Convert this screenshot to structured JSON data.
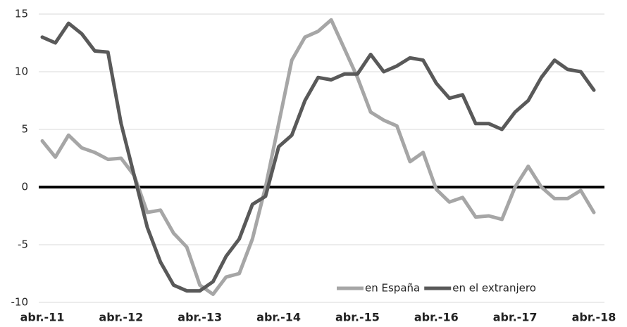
{
  "chart_data": {
    "type": "line",
    "categories": [
      "abr.-11",
      null,
      null,
      null,
      null,
      null,
      "abr.-12",
      null,
      null,
      null,
      null,
      null,
      "abr.-13",
      null,
      null,
      null,
      null,
      null,
      "abr.-14",
      null,
      null,
      null,
      null,
      null,
      "abr.-15",
      null,
      null,
      null,
      null,
      null,
      "abr.-16",
      null,
      null,
      null,
      null,
      null,
      "abr.-17",
      null,
      null,
      null,
      null,
      null,
      "abr.-18"
    ],
    "series": [
      {
        "name": "en España",
        "color": "#a6a6a6",
        "values": [
          4.0,
          2.6,
          4.5,
          3.4,
          3.0,
          2.4,
          2.5,
          1.0,
          -2.2,
          -2.0,
          -4.0,
          -5.2,
          -8.5,
          -9.3,
          -7.8,
          -7.5,
          -4.5,
          0,
          5.5,
          11,
          13,
          13.5,
          14.5,
          12,
          9.5,
          6.5,
          5.8,
          5.3,
          2.2,
          3.0,
          -0.2,
          -1.3,
          -0.9,
          -2.6,
          -2.5,
          -2.8,
          0.0,
          1.8,
          0.0,
          -1.0,
          -1.0,
          -0.3,
          -2.2
        ]
      },
      {
        "name": "en el extranjero",
        "color": "#595959",
        "values": [
          13.0,
          12.5,
          14.2,
          13.3,
          11.8,
          11.7,
          5.5,
          1.0,
          -3.5,
          -6.5,
          -8.5,
          -9.0,
          -9.0,
          -8.2,
          -6.0,
          -4.5,
          -1.5,
          -0.8,
          3.5,
          4.5,
          7.5,
          9.5,
          9.3,
          9.8,
          9.8,
          11.5,
          10,
          10.5,
          11.2,
          11.0,
          9,
          7.7,
          8.0,
          5.5,
          5.5,
          5.0,
          6.5,
          7.5,
          9.5,
          11.0,
          10.2,
          10.0,
          8.4
        ]
      }
    ],
    "ylim": [
      -10,
      15
    ],
    "yticks": [
      -10,
      -5,
      0,
      5,
      10,
      15
    ],
    "grid": true,
    "legend": "bottom-right"
  }
}
